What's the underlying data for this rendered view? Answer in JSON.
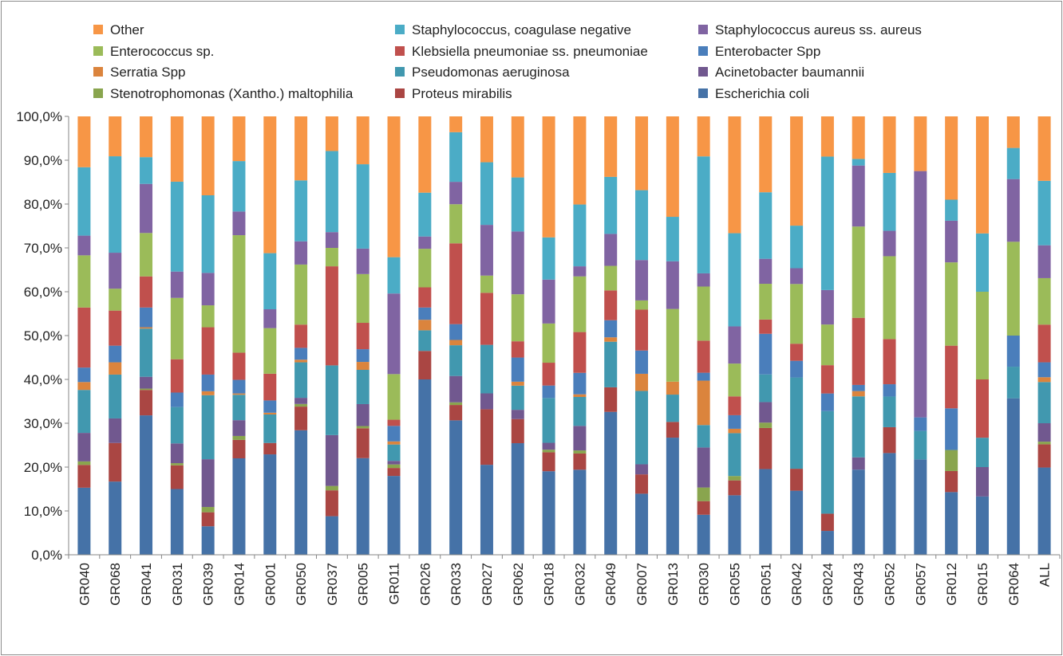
{
  "chart_data": {
    "type": "bar",
    "stacked": true,
    "title": "",
    "xlabel": "",
    "ylabel": "",
    "ylim": [
      0,
      100
    ],
    "y_ticks": [
      "0,0%",
      "10,0%",
      "20,0%",
      "30,0%",
      "40,0%",
      "50,0%",
      "60,0%",
      "70,0%",
      "80,0%",
      "90,0%",
      "100,0%"
    ],
    "grid": false,
    "legend_position": "top",
    "categories": [
      "GR040",
      "GR068",
      "GR041",
      "GR031",
      "GR039",
      "GR014",
      "GR001",
      "GR050",
      "GR037",
      "GR005",
      "GR011",
      "GR026",
      "GR033",
      "GR027",
      "GR062",
      "GR018",
      "GR032",
      "GR049",
      "GR007",
      "GR013",
      "GR030",
      "GR055",
      "GR051",
      "GR042",
      "GR024",
      "GR043",
      "GR052",
      "GR057",
      "GR012",
      "GR015",
      "GR064",
      "ALL"
    ],
    "series": [
      {
        "name": "Escherichia coli",
        "color": "#4572a7",
        "values": [
          15.3,
          16.7,
          31.8,
          15.0,
          6.5,
          22.0,
          22.9,
          28.4,
          8.8,
          22.0,
          17.8,
          40.0,
          30.6,
          20.4,
          25.4,
          19.4,
          19.4,
          32.6,
          13.9,
          25.3,
          9.1,
          13.6,
          19.2,
          14.6,
          5.4,
          19.4,
          23.2,
          21.8,
          14.3,
          13.3,
          35.7,
          19.9
        ]
      },
      {
        "name": "Proteus mirabilis",
        "color": "#aa4643",
        "values": [
          5.2,
          8.8,
          5.8,
          5.4,
          3.2,
          4.2,
          2.6,
          5.4,
          5.9,
          6.8,
          1.8,
          6.5,
          3.5,
          12.6,
          5.5,
          4.4,
          3.7,
          5.6,
          4.4,
          3.4,
          3.1,
          3.4,
          9.2,
          5.0,
          3.9,
          0,
          5.9,
          0,
          4.8,
          0,
          0,
          5.3
        ]
      },
      {
        "name": "Stenotrophomonas (Xantho.) maltophilia",
        "color": "#89a54e",
        "values": [
          0.8,
          0,
          0.3,
          0.5,
          1.2,
          0.9,
          0,
          0.6,
          1.0,
          0.5,
          0.8,
          0,
          0.6,
          0,
          0,
          0.6,
          0.7,
          0,
          0,
          0,
          3.1,
          1.0,
          1.2,
          0,
          0,
          0,
          0,
          0,
          4.8,
          0,
          0,
          0.6
        ]
      },
      {
        "name": "Acinetobacter baumannii",
        "color": "#71588f",
        "values": [
          6.5,
          5.6,
          2.7,
          4.5,
          10.9,
          3.6,
          0,
          1.4,
          11.6,
          5.0,
          0.8,
          0,
          6.0,
          3.6,
          2.1,
          1.6,
          5.6,
          0,
          2.3,
          0,
          9.1,
          0,
          4.6,
          0,
          0,
          2.8,
          0,
          0,
          0,
          6.7,
          0,
          4.2
        ]
      },
      {
        "name": "Pseudomonas aeruginosa",
        "color": "#4198af",
        "values": [
          9.8,
          10.0,
          11.0,
          8.3,
          14.6,
          5.8,
          6.5,
          8.1,
          15.9,
          7.8,
          3.7,
          4.7,
          7.0,
          11.0,
          5.5,
          10.4,
          6.6,
          10.4,
          16.7,
          5.9,
          5.1,
          9.8,
          6.2,
          20.8,
          23.2,
          13.9,
          7.0,
          6.5,
          0,
          6.7,
          7.2,
          9.4
        ]
      },
      {
        "name": "Serratia Spp",
        "color": "#db843d",
        "values": [
          1.8,
          2.8,
          0.3,
          0,
          0.9,
          0.3,
          0.4,
          0.6,
          0,
          1.8,
          0.7,
          2.4,
          1.2,
          0,
          0.9,
          0,
          0.6,
          1.0,
          3.9,
          2.8,
          10.1,
          1.0,
          0,
          0,
          0,
          1.2,
          0,
          0,
          0,
          0,
          0,
          1.1
        ]
      },
      {
        "name": "Enterobacter Spp",
        "color": "#4a7ebb",
        "values": [
          3.3,
          3.8,
          4.5,
          3.3,
          3.8,
          3.1,
          2.8,
          2.7,
          0,
          2.9,
          3.5,
          2.8,
          3.6,
          0,
          5.5,
          2.9,
          4.9,
          3.9,
          5.3,
          0,
          1.8,
          3.1,
          9.1,
          3.8,
          4.0,
          1.4,
          2.8,
          3.1,
          9.5,
          0,
          7.1,
          3.4
        ]
      },
      {
        "name": "Klebsiella pneumoniae ss. pneumoniae",
        "color": "#c0504d",
        "values": [
          13.7,
          8.0,
          7.1,
          7.6,
          10.8,
          6.2,
          6.1,
          5.3,
          22.6,
          6.0,
          1.4,
          4.6,
          18.4,
          11.8,
          3.7,
          5.3,
          9.3,
          6.8,
          9.3,
          0,
          7.3,
          4.3,
          3.2,
          3.9,
          6.4,
          15.3,
          10.3,
          0,
          14.3,
          13.3,
          0,
          8.6
        ]
      },
      {
        "name": "Enterococcus sp.",
        "color": "#9bbb59",
        "values": [
          11.9,
          5.0,
          9.9,
          14.0,
          5.0,
          26.8,
          10.4,
          13.7,
          4.2,
          11.1,
          10.3,
          8.8,
          8.9,
          3.9,
          10.7,
          9.1,
          12.7,
          5.6,
          2.1,
          15.7,
          12.3,
          7.5,
          8.0,
          13.6,
          9.2,
          20.8,
          18.9,
          0,
          19.0,
          20.0,
          21.4,
          10.6
        ]
      },
      {
        "name": "Staphylococcus aureus ss. aureus",
        "color": "#8064a2",
        "values": [
          4.5,
          8.2,
          11.2,
          6.0,
          7.4,
          5.4,
          4.3,
          5.3,
          3.6,
          5.8,
          18.2,
          2.8,
          5.1,
          11.5,
          14.3,
          10.2,
          2.3,
          7.3,
          9.2,
          10.3,
          3.0,
          8.5,
          5.6,
          3.6,
          7.8,
          13.9,
          5.8,
          56.3,
          9.5,
          0,
          14.3,
          7.5
        ]
      },
      {
        "name": "Staphylococcus, coagulase negative",
        "color": "#4bacc6",
        "values": [
          15.6,
          22.0,
          6.1,
          20.5,
          17.7,
          11.5,
          12.8,
          13.9,
          18.5,
          19.2,
          8.2,
          10.0,
          11.3,
          14.2,
          12.3,
          9.8,
          14.1,
          13.0,
          15.9,
          9.6,
          26.6,
          21.3,
          14.9,
          9.7,
          30.2,
          1.5,
          13.2,
          0,
          4.8,
          13.3,
          7.1,
          14.7
        ]
      },
      {
        "name": "Other",
        "color": "#f79646",
        "values": [
          11.6,
          9.1,
          9.3,
          14.9,
          18.0,
          10.2,
          31.2,
          14.6,
          7.9,
          10.9,
          31.8,
          17.4,
          3.6,
          10.4,
          13.9,
          28.1,
          20.1,
          13.8,
          16.8,
          21.7,
          9.1,
          26.7,
          17.0,
          24.9,
          9.1,
          9.7,
          12.9,
          12.5,
          19.0,
          26.7,
          7.2,
          14.7
        ]
      }
    ],
    "legend_order": [
      "Other",
      "Staphylococcus, coagulase negative",
      "Staphylococcus aureus ss. aureus",
      "Enterococcus sp.",
      "Klebsiella pneumoniae ss. pneumoniae",
      "Enterobacter Spp",
      "Serratia Spp",
      "Pseudomonas aeruginosa",
      "Acinetobacter baumannii",
      "Stenotrophomonas (Xantho.) maltophilia",
      "Proteus mirabilis",
      "Escherichia coli"
    ]
  }
}
